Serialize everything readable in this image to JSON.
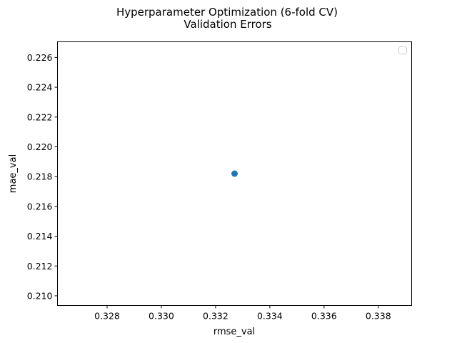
{
  "chart_data": {
    "type": "scatter",
    "title": "Hyperparameter Optimization (6-fold CV)",
    "subtitle": "Validation Errors",
    "xlabel": "rmse_val",
    "ylabel": "mae_val",
    "xlim": [
      0.32617,
      0.33923
    ],
    "ylim": [
      0.20935,
      0.22705
    ],
    "xticks": [
      "0.328",
      "0.330",
      "0.332",
      "0.334",
      "0.336",
      "0.338"
    ],
    "xtick_values": [
      0.328,
      0.33,
      0.332,
      0.334,
      0.336,
      0.338
    ],
    "yticks": [
      "0.210",
      "0.212",
      "0.214",
      "0.216",
      "0.218",
      "0.220",
      "0.222",
      "0.224",
      "0.226"
    ],
    "ytick_values": [
      0.21,
      0.212,
      0.214,
      0.216,
      0.218,
      0.22,
      0.222,
      0.224,
      0.226
    ],
    "series": [
      {
        "color": "#1f77b4",
        "points": [
          {
            "x": 0.3327,
            "y": 0.2182
          }
        ]
      }
    ],
    "grid": false,
    "legend": "top-right (empty)"
  }
}
